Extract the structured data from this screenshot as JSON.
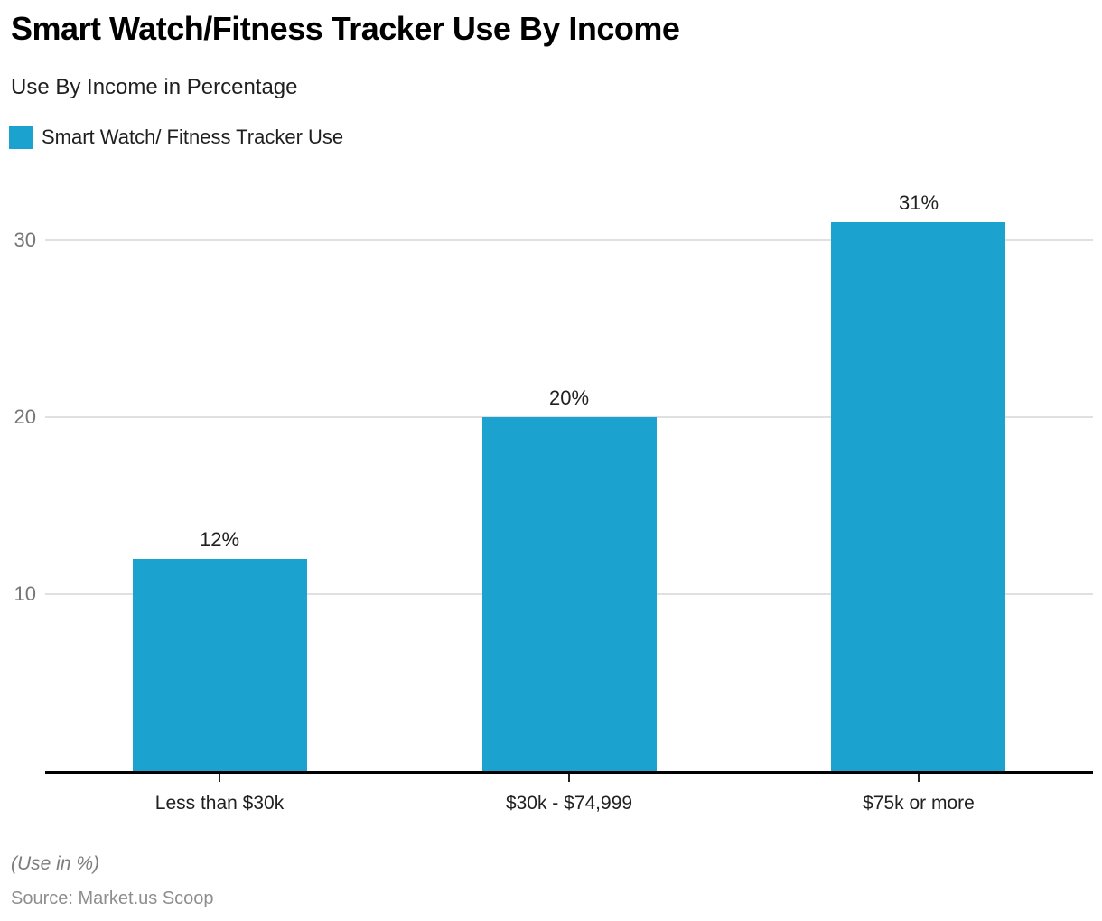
{
  "header": {
    "title": "Smart Watch/Fitness Tracker Use By Income",
    "subtitle": "Use By Income in Percentage"
  },
  "legend": {
    "label": "Smart Watch/ Fitness Tracker Use"
  },
  "chart_data": {
    "type": "bar",
    "title": "Smart Watch/Fitness Tracker Use By Income",
    "subtitle": "Use By Income in Percentage",
    "categories": [
      "Less than $30k",
      "$30k - $74,999",
      "$75k or more"
    ],
    "series": [
      {
        "name": "Smart Watch/ Fitness Tracker Use",
        "values": [
          12,
          20,
          31
        ]
      }
    ],
    "value_labels": [
      "12%",
      "20%",
      "31%"
    ],
    "yticks": [
      10,
      20,
      30
    ],
    "ylim": [
      0,
      33.5
    ],
    "bar_color": "#1BA2CE",
    "gridline_color": "#e0e0e0",
    "axis_color": "#000000",
    "grid": true,
    "legend_position": "top-left",
    "xlabel": "",
    "ylabel": ""
  },
  "footer": {
    "note": "(Use in %)",
    "source": "Source: Market.us Scoop"
  }
}
